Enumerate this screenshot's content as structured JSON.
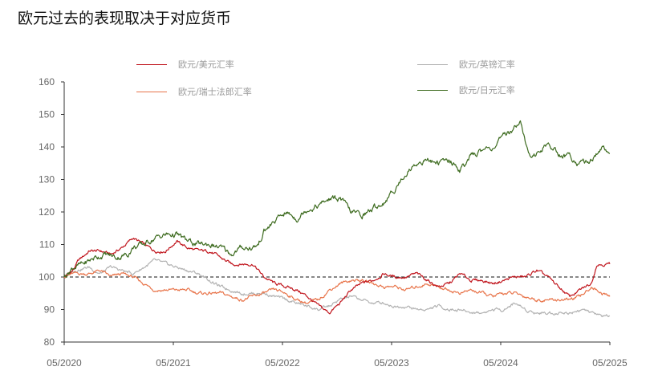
{
  "chart_data": {
    "type": "line",
    "title": "欧元过去的表现取决于对应货币",
    "x_ticks": [
      "05/2020",
      "05/2021",
      "05/2022",
      "05/2023",
      "05/2024",
      "05/2025"
    ],
    "y_ticks": [
      80,
      90,
      100,
      110,
      120,
      130,
      140,
      150,
      160
    ],
    "ylim": [
      80,
      160
    ],
    "xlim": [
      2020.37,
      2025.37
    ],
    "reference_line": 100,
    "legend_placement": "top",
    "series": [
      {
        "name": "欧元/美元汇率",
        "color": "#c0141c",
        "points": [
          [
            2020.37,
            100
          ],
          [
            2020.45,
            102
          ],
          [
            2020.5,
            105
          ],
          [
            2020.6,
            108
          ],
          [
            2020.7,
            108
          ],
          [
            2020.8,
            107
          ],
          [
            2020.9,
            109
          ],
          [
            2021.0,
            112
          ],
          [
            2021.1,
            110
          ],
          [
            2021.2,
            108
          ],
          [
            2021.3,
            108
          ],
          [
            2021.4,
            111
          ],
          [
            2021.5,
            109
          ],
          [
            2021.6,
            108
          ],
          [
            2021.7,
            108
          ],
          [
            2021.8,
            106
          ],
          [
            2021.9,
            104
          ],
          [
            2022.0,
            104
          ],
          [
            2022.1,
            104
          ],
          [
            2022.2,
            100
          ],
          [
            2022.3,
            98
          ],
          [
            2022.4,
            97
          ],
          [
            2022.5,
            96
          ],
          [
            2022.6,
            94
          ],
          [
            2022.7,
            91
          ],
          [
            2022.8,
            89
          ],
          [
            2022.9,
            92
          ],
          [
            2023.0,
            96
          ],
          [
            2023.1,
            98
          ],
          [
            2023.2,
            99
          ],
          [
            2023.3,
            101
          ],
          [
            2023.4,
            100
          ],
          [
            2023.5,
            100
          ],
          [
            2023.6,
            101
          ],
          [
            2023.7,
            99
          ],
          [
            2023.8,
            97
          ],
          [
            2023.9,
            98
          ],
          [
            2024.0,
            101
          ],
          [
            2024.1,
            99
          ],
          [
            2024.2,
            99
          ],
          [
            2024.3,
            98
          ],
          [
            2024.4,
            99
          ],
          [
            2024.5,
            100
          ],
          [
            2024.6,
            100
          ],
          [
            2024.7,
            102
          ],
          [
            2024.8,
            100
          ],
          [
            2024.9,
            97
          ],
          [
            2025.0,
            94
          ],
          [
            2025.1,
            96
          ],
          [
            2025.2,
            98
          ],
          [
            2025.25,
            104
          ],
          [
            2025.3,
            104
          ],
          [
            2025.37,
            104
          ]
        ]
      },
      {
        "name": "欧元/瑞士法郎汇率",
        "color": "#e8744a",
        "points": [
          [
            2020.37,
            100
          ],
          [
            2020.45,
            101
          ],
          [
            2020.6,
            101
          ],
          [
            2020.7,
            102
          ],
          [
            2020.8,
            100
          ],
          [
            2020.9,
            101
          ],
          [
            2021.0,
            100
          ],
          [
            2021.1,
            98
          ],
          [
            2021.2,
            96
          ],
          [
            2021.3,
            96
          ],
          [
            2021.4,
            96
          ],
          [
            2021.5,
            96
          ],
          [
            2021.6,
            95
          ],
          [
            2021.7,
            95
          ],
          [
            2021.8,
            95
          ],
          [
            2021.9,
            94
          ],
          [
            2022.0,
            93
          ],
          [
            2022.1,
            94
          ],
          [
            2022.2,
            95
          ],
          [
            2022.3,
            96
          ],
          [
            2022.4,
            95
          ],
          [
            2022.5,
            93
          ],
          [
            2022.6,
            92
          ],
          [
            2022.7,
            93
          ],
          [
            2022.8,
            96
          ],
          [
            2022.9,
            98
          ],
          [
            2023.0,
            99
          ],
          [
            2023.1,
            99
          ],
          [
            2023.2,
            98
          ],
          [
            2023.3,
            97
          ],
          [
            2023.4,
            97
          ],
          [
            2023.5,
            96
          ],
          [
            2023.6,
            97
          ],
          [
            2023.7,
            98
          ],
          [
            2023.8,
            97
          ],
          [
            2023.9,
            96
          ],
          [
            2024.0,
            95
          ],
          [
            2024.1,
            96
          ],
          [
            2024.2,
            95
          ],
          [
            2024.3,
            94
          ],
          [
            2024.4,
            95
          ],
          [
            2024.5,
            95
          ],
          [
            2024.6,
            94
          ],
          [
            2024.7,
            93
          ],
          [
            2024.8,
            93
          ],
          [
            2024.9,
            93
          ],
          [
            2025.0,
            93
          ],
          [
            2025.1,
            94
          ],
          [
            2025.2,
            97
          ],
          [
            2025.3,
            95
          ],
          [
            2025.37,
            94
          ]
        ]
      },
      {
        "name": "欧元/英镑汇率",
        "color": "#b2b2b2",
        "points": [
          [
            2020.37,
            100
          ],
          [
            2020.45,
            102
          ],
          [
            2020.6,
            103
          ],
          [
            2020.7,
            101
          ],
          [
            2020.8,
            103
          ],
          [
            2020.9,
            102
          ],
          [
            2021.0,
            101
          ],
          [
            2021.1,
            103
          ],
          [
            2021.2,
            105
          ],
          [
            2021.3,
            104
          ],
          [
            2021.4,
            103
          ],
          [
            2021.5,
            102
          ],
          [
            2021.6,
            101
          ],
          [
            2021.7,
            99
          ],
          [
            2021.8,
            97
          ],
          [
            2021.9,
            96
          ],
          [
            2022.0,
            95
          ],
          [
            2022.1,
            95
          ],
          [
            2022.2,
            95
          ],
          [
            2022.3,
            94
          ],
          [
            2022.4,
            93
          ],
          [
            2022.5,
            92
          ],
          [
            2022.6,
            91
          ],
          [
            2022.7,
            90
          ],
          [
            2022.8,
            91
          ],
          [
            2022.9,
            93
          ],
          [
            2023.0,
            94
          ],
          [
            2023.1,
            93
          ],
          [
            2023.2,
            92
          ],
          [
            2023.3,
            92
          ],
          [
            2023.4,
            91
          ],
          [
            2023.5,
            91
          ],
          [
            2023.6,
            90
          ],
          [
            2023.7,
            90
          ],
          [
            2023.8,
            91
          ],
          [
            2023.9,
            90
          ],
          [
            2024.0,
            90
          ],
          [
            2024.1,
            89
          ],
          [
            2024.2,
            89
          ],
          [
            2024.3,
            90
          ],
          [
            2024.4,
            90
          ],
          [
            2024.5,
            92
          ],
          [
            2024.6,
            90
          ],
          [
            2024.7,
            89
          ],
          [
            2024.8,
            89
          ],
          [
            2024.9,
            89
          ],
          [
            2025.0,
            89
          ],
          [
            2025.1,
            90
          ],
          [
            2025.2,
            89
          ],
          [
            2025.3,
            88
          ],
          [
            2025.37,
            88
          ]
        ]
      },
      {
        "name": "欧元/日元汇率",
        "color": "#3d6b1f",
        "points": [
          [
            2020.37,
            100
          ],
          [
            2020.45,
            103
          ],
          [
            2020.55,
            104
          ],
          [
            2020.65,
            106
          ],
          [
            2020.75,
            107
          ],
          [
            2020.85,
            106
          ],
          [
            2020.95,
            107
          ],
          [
            2021.0,
            109
          ],
          [
            2021.1,
            110
          ],
          [
            2021.2,
            112
          ],
          [
            2021.3,
            113
          ],
          [
            2021.4,
            113
          ],
          [
            2021.5,
            111
          ],
          [
            2021.6,
            110
          ],
          [
            2021.7,
            110
          ],
          [
            2021.8,
            109
          ],
          [
            2021.9,
            107
          ],
          [
            2022.0,
            109
          ],
          [
            2022.1,
            109
          ],
          [
            2022.15,
            110
          ],
          [
            2022.2,
            114
          ],
          [
            2022.3,
            117
          ],
          [
            2022.4,
            120
          ],
          [
            2022.5,
            118
          ],
          [
            2022.6,
            121
          ],
          [
            2022.7,
            122
          ],
          [
            2022.8,
            124
          ],
          [
            2022.9,
            124
          ],
          [
            2023.0,
            120
          ],
          [
            2023.1,
            119
          ],
          [
            2023.2,
            121
          ],
          [
            2023.3,
            123
          ],
          [
            2023.4,
            127
          ],
          [
            2023.5,
            132
          ],
          [
            2023.6,
            135
          ],
          [
            2023.7,
            136
          ],
          [
            2023.8,
            135
          ],
          [
            2023.9,
            136
          ],
          [
            2024.0,
            133
          ],
          [
            2024.1,
            137
          ],
          [
            2024.2,
            139
          ],
          [
            2024.3,
            140
          ],
          [
            2024.4,
            143
          ],
          [
            2024.5,
            146
          ],
          [
            2024.55,
            149
          ],
          [
            2024.6,
            141
          ],
          [
            2024.65,
            136
          ],
          [
            2024.7,
            138
          ],
          [
            2024.8,
            141
          ],
          [
            2024.9,
            138
          ],
          [
            2025.0,
            137
          ],
          [
            2025.1,
            135
          ],
          [
            2025.2,
            136
          ],
          [
            2025.3,
            140
          ],
          [
            2025.37,
            138
          ]
        ]
      }
    ]
  }
}
